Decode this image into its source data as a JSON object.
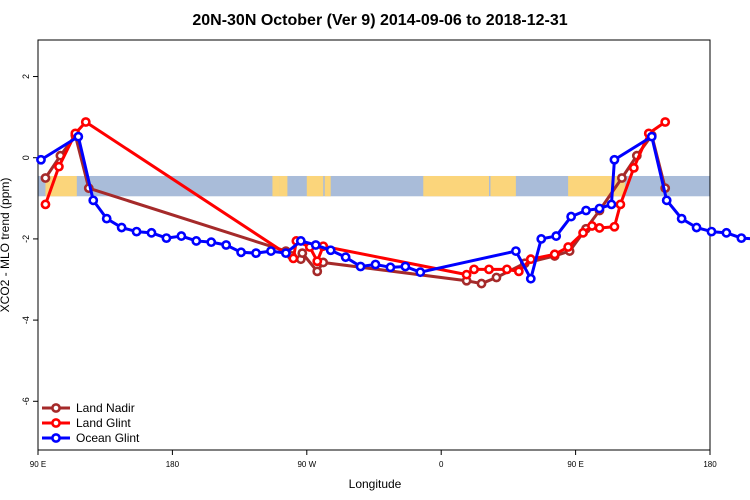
{
  "chart_data": {
    "type": "line",
    "title": "20N-30N October (Ver 9)   2014-09-06 to 2018-12-31",
    "xlabel": "Longitude",
    "ylabel": "XCO2 - MLO trend (ppm)",
    "xlim": [
      90,
      540
    ],
    "ylim": [
      -7.2,
      2.9
    ],
    "x_ticks": [
      {
        "value": 90,
        "label": "90 E"
      },
      {
        "value": 180,
        "label": "180"
      },
      {
        "value": 270,
        "label": "90 W"
      },
      {
        "value": 360,
        "label": "0"
      },
      {
        "value": 450,
        "label": "90 E"
      },
      {
        "value": 540,
        "label": "180"
      }
    ],
    "y_ticks": [
      2,
      0,
      -2,
      -4,
      -6
    ],
    "grid": false,
    "legend_position": "bottom-left",
    "band_colors": {
      "ocean": "#a9bcd9",
      "land": "#fbd57b"
    },
    "land_segments": [
      [
        95,
        116
      ],
      [
        247,
        252
      ],
      [
        252,
        257
      ],
      [
        270,
        281
      ],
      [
        282,
        286
      ],
      [
        348,
        392
      ],
      [
        393,
        410
      ],
      [
        445,
        483
      ]
    ],
    "series": [
      {
        "name": "Land Nadir",
        "color": "#a52a2a",
        "points": [
          [
            95,
            -0.5
          ],
          [
            105,
            0.05
          ],
          [
            115,
            0.55
          ],
          [
            124,
            -0.75
          ],
          [
            256,
            -2.3
          ],
          [
            260,
            -2.42
          ],
          [
            266,
            -2.5
          ],
          [
            267,
            -2.35
          ],
          [
            277,
            -2.8
          ],
          [
            281,
            -2.58
          ],
          [
            377,
            -3.03
          ],
          [
            387,
            -3.1
          ],
          [
            397,
            -2.95
          ],
          [
            416,
            -2.6
          ],
          [
            436,
            -2.42
          ],
          [
            446,
            -2.3
          ],
          [
            457,
            -1.75
          ],
          [
            466,
            -1.3
          ],
          [
            481,
            -0.5
          ],
          [
            491,
            0.05
          ],
          [
            501,
            0.55
          ],
          [
            510,
            -0.75
          ]
        ]
      },
      {
        "name": "Land Glint",
        "color": "#ff0000",
        "points": [
          [
            95,
            -1.15
          ],
          [
            104,
            -0.22
          ],
          [
            115,
            0.6
          ],
          [
            122,
            0.88
          ],
          [
            261,
            -2.48
          ],
          [
            263,
            -2.05
          ],
          [
            272,
            -2.2
          ],
          [
            277,
            -2.55
          ],
          [
            281,
            -2.18
          ],
          [
            377,
            -2.88
          ],
          [
            382,
            -2.75
          ],
          [
            392,
            -2.75
          ],
          [
            404,
            -2.75
          ],
          [
            412,
            -2.8
          ],
          [
            420,
            -2.5
          ],
          [
            436,
            -2.38
          ],
          [
            445,
            -2.2
          ],
          [
            455,
            -1.85
          ],
          [
            461,
            -1.68
          ],
          [
            466,
            -1.73
          ],
          [
            476,
            -1.7
          ],
          [
            480,
            -1.15
          ],
          [
            489,
            -0.25
          ],
          [
            499,
            0.6
          ],
          [
            510,
            0.88
          ]
        ]
      },
      {
        "name": "Ocean Glint",
        "color": "#0000ff",
        "points": [
          [
            92,
            -0.05
          ],
          [
            117,
            0.52
          ],
          [
            127,
            -1.05
          ],
          [
            136,
            -1.5
          ],
          [
            146,
            -1.72
          ],
          [
            156,
            -1.82
          ],
          [
            166,
            -1.85
          ],
          [
            176,
            -1.98
          ],
          [
            186,
            -1.93
          ],
          [
            196,
            -2.05
          ],
          [
            206,
            -2.08
          ],
          [
            216,
            -2.15
          ],
          [
            226,
            -2.33
          ],
          [
            236,
            -2.35
          ],
          [
            246,
            -2.3
          ],
          [
            256,
            -2.35
          ],
          [
            266,
            -2.05
          ],
          [
            276,
            -2.15
          ],
          [
            286,
            -2.28
          ],
          [
            296,
            -2.45
          ],
          [
            306,
            -2.68
          ],
          [
            316,
            -2.63
          ],
          [
            326,
            -2.7
          ],
          [
            336,
            -2.68
          ],
          [
            346,
            -2.82
          ],
          [
            410,
            -2.3
          ],
          [
            420,
            -2.98
          ],
          [
            427,
            -2.0
          ],
          [
            437,
            -1.93
          ],
          [
            447,
            -1.45
          ],
          [
            457,
            -1.3
          ],
          [
            466,
            -1.25
          ],
          [
            474,
            -1.15
          ],
          [
            476,
            -0.05
          ],
          [
            501,
            0.52
          ],
          [
            511,
            -1.05
          ],
          [
            521,
            -1.5
          ],
          [
            531,
            -1.72
          ],
          [
            541,
            -1.82
          ],
          [
            551,
            -1.85
          ],
          [
            561,
            -1.98
          ],
          [
            571,
            -2.0
          ]
        ]
      }
    ]
  }
}
